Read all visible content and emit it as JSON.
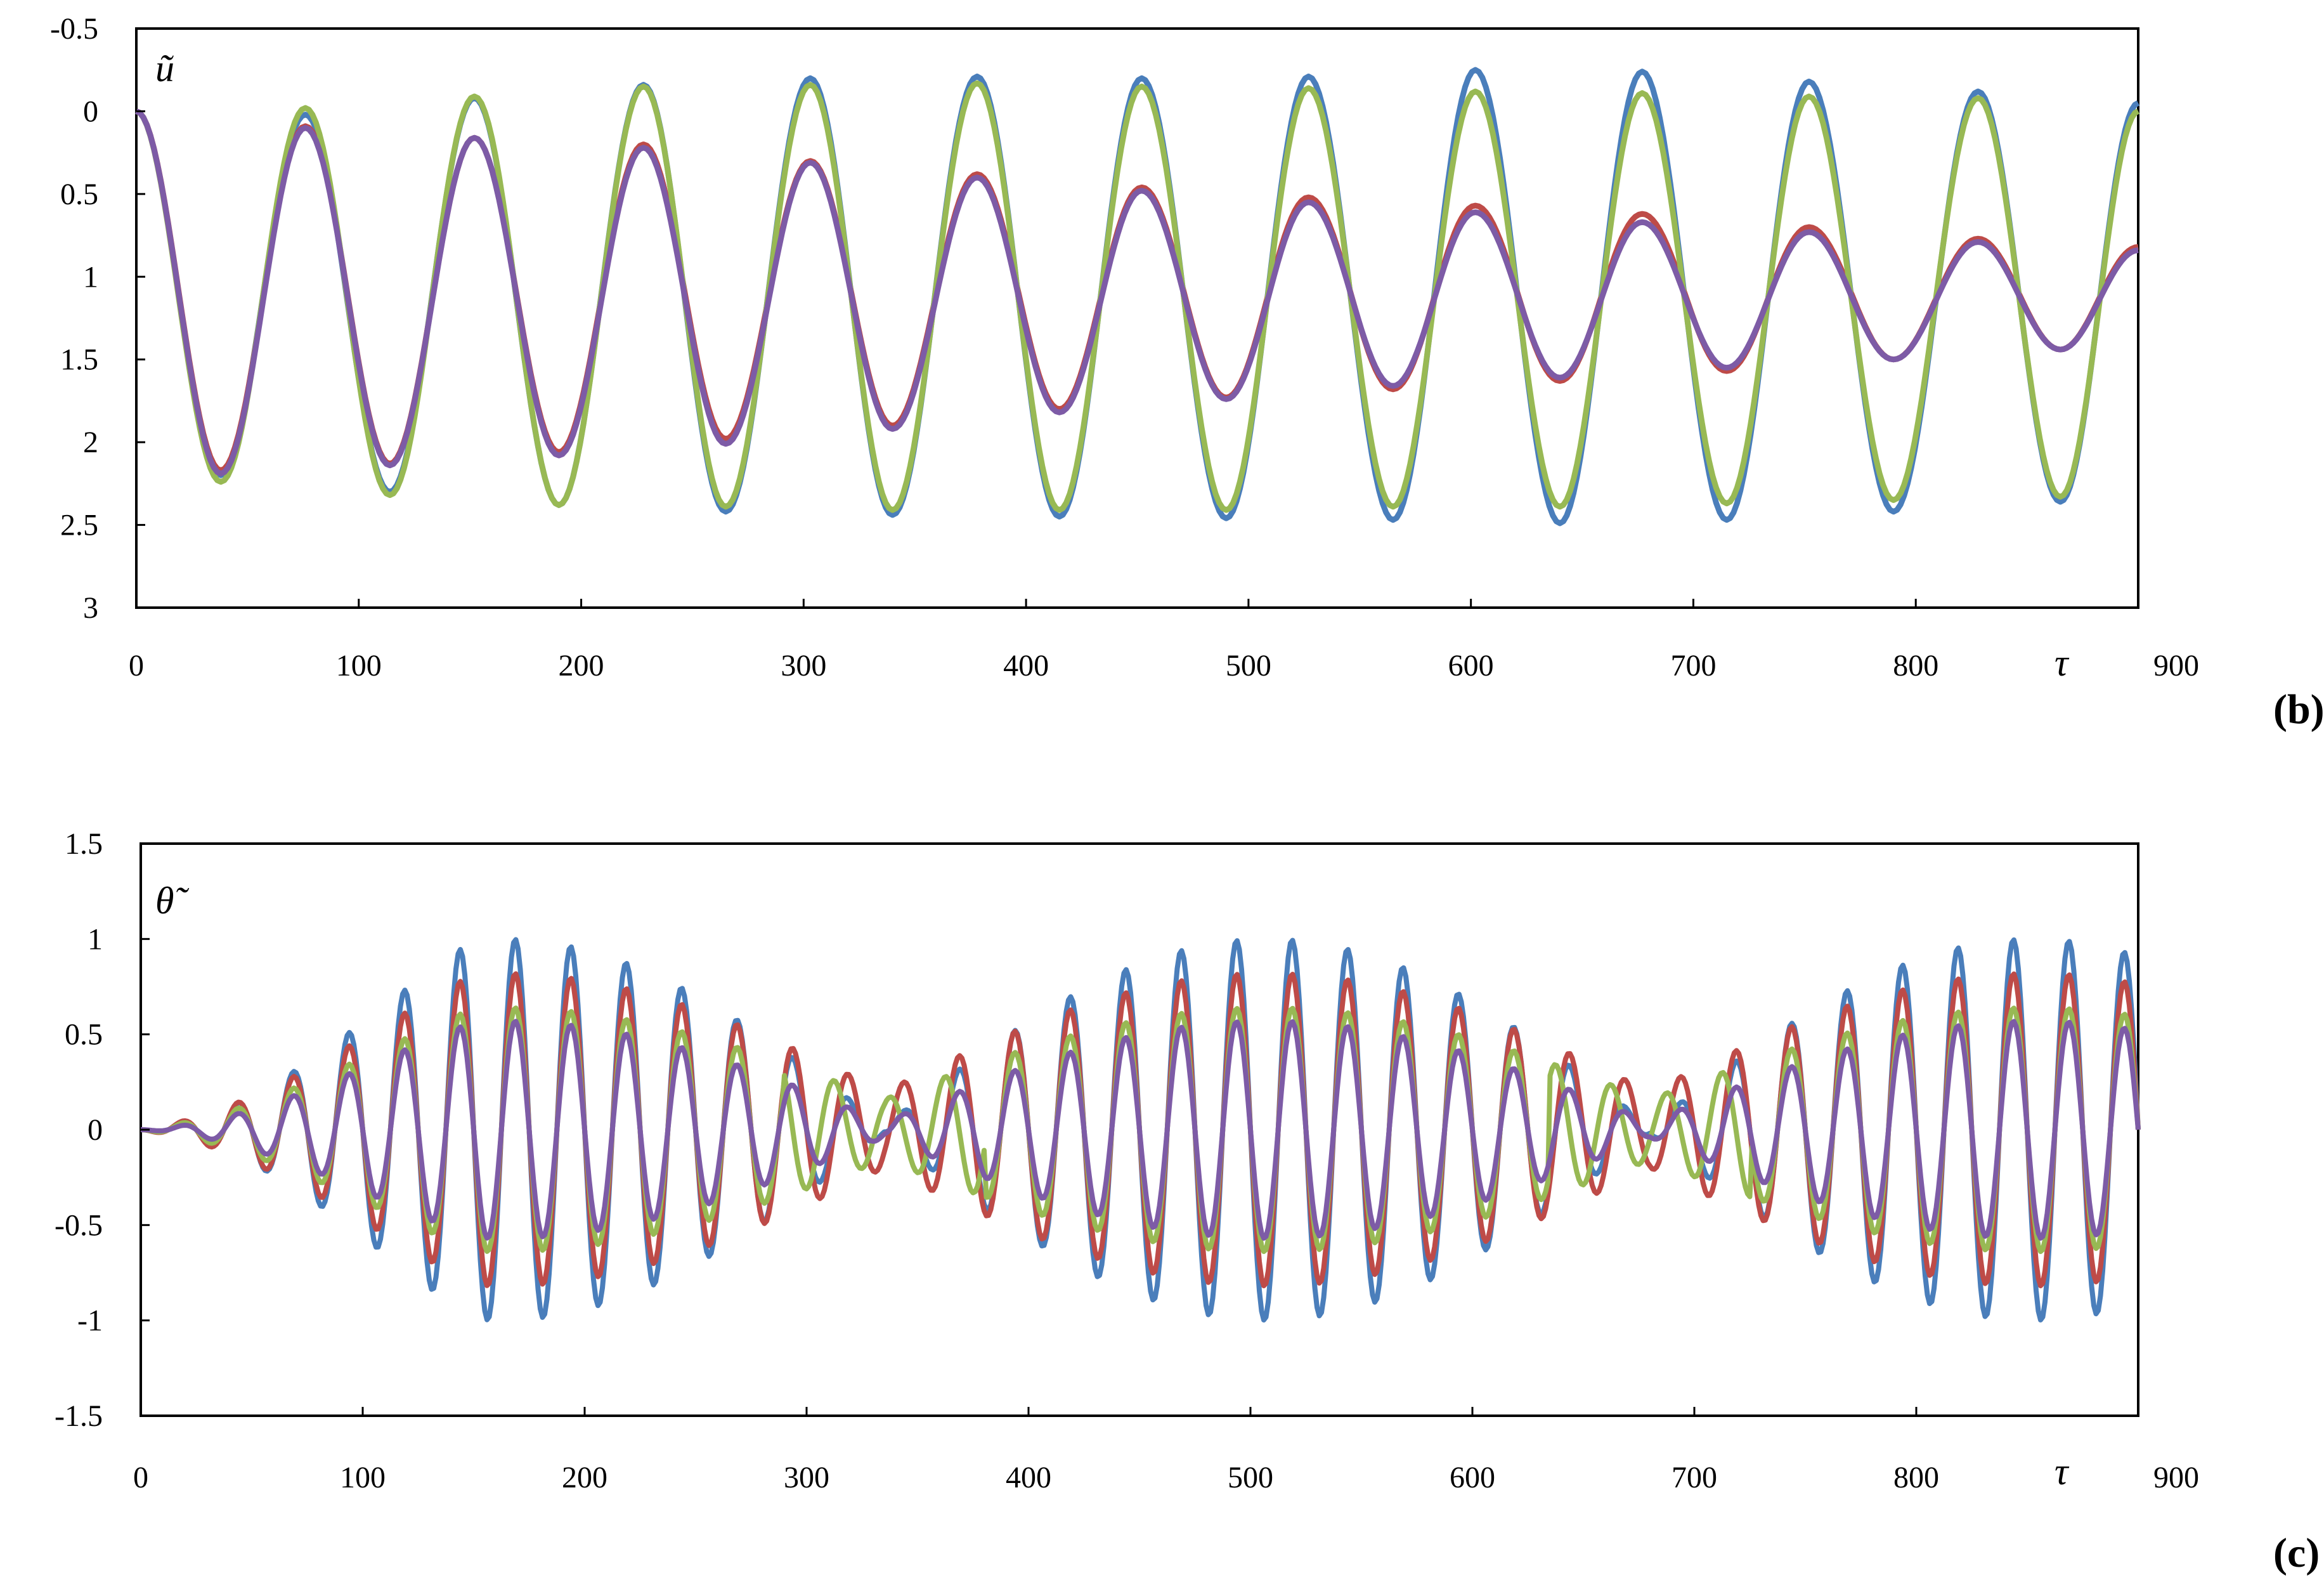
{
  "panels": [
    {
      "tag": "(b)",
      "var_label": "ũ",
      "x_label": "τ",
      "y_ticks": [
        "-0.5",
        "0",
        "0.5",
        "1",
        "1.5",
        "2",
        "2.5",
        "3"
      ],
      "x_ticks": [
        "0",
        "100",
        "200",
        "300",
        "400",
        "500",
        "600",
        "700",
        "800",
        "900"
      ]
    },
    {
      "tag": "(c)",
      "var_label": "θ̃",
      "x_label": "τ",
      "y_ticks": [
        "1.5",
        "1",
        "0.5",
        "0",
        "-0.5",
        "-1",
        "-1.5"
      ],
      "x_ticks": [
        "0",
        "100",
        "200",
        "300",
        "400",
        "500",
        "600",
        "700",
        "800",
        "900"
      ]
    }
  ],
  "chart_data": [
    {
      "type": "line",
      "title": "",
      "xlabel": "τ",
      "ylabel": "ũ",
      "xlim": [
        0,
        900
      ],
      "ylim": [
        -0.5,
        3
      ],
      "y_inverted": true,
      "grid": false,
      "legend": "none",
      "x": [
        0,
        38,
        76,
        114,
        152,
        190,
        228,
        265,
        303,
        340,
        378,
        415,
        452,
        490,
        527,
        565,
        602,
        640,
        677,
        715,
        752,
        790,
        828,
        865,
        900
      ],
      "series": [
        {
          "color": "#4a7ebb",
          "values": [
            0,
            2.2,
            0.02,
            2.3,
            -0.08,
            2.38,
            -0.16,
            2.42,
            -0.2,
            2.44,
            -0.21,
            2.45,
            -0.2,
            2.46,
            -0.21,
            2.47,
            -0.25,
            2.49,
            -0.24,
            2.47,
            -0.18,
            2.42,
            -0.12,
            2.36,
            -0.05
          ]
        },
        {
          "color": "#be4b48",
          "values": [
            0,
            2.17,
            0.09,
            2.13,
            0.16,
            2.06,
            0.2,
            1.98,
            0.3,
            1.9,
            0.38,
            1.8,
            0.46,
            1.73,
            0.52,
            1.68,
            0.57,
            1.63,
            0.62,
            1.57,
            0.7,
            1.5,
            0.77,
            1.44,
            0.82
          ]
        },
        {
          "color": "#98b954",
          "values": [
            0,
            2.24,
            -0.02,
            2.32,
            -0.09,
            2.38,
            -0.15,
            2.39,
            -0.16,
            2.41,
            -0.17,
            2.41,
            -0.15,
            2.41,
            -0.14,
            2.39,
            -0.12,
            2.39,
            -0.11,
            2.37,
            -0.09,
            2.35,
            -0.08,
            2.33,
            0.0
          ]
        },
        {
          "color": "#7d5ba6",
          "values": [
            0,
            2.19,
            0.1,
            2.14,
            0.16,
            2.08,
            0.22,
            2.01,
            0.31,
            1.92,
            0.4,
            1.82,
            0.48,
            1.74,
            0.55,
            1.66,
            0.61,
            1.61,
            0.67,
            1.55,
            0.73,
            1.5,
            0.79,
            1.44,
            0.84
          ]
        }
      ]
    },
    {
      "type": "line",
      "title": "",
      "xlabel": "τ",
      "ylabel": "θ̃",
      "xlim": [
        0,
        900
      ],
      "ylim": [
        -1.5,
        1.5
      ],
      "grid": false,
      "legend": "none",
      "period": 25,
      "beat_period": 345,
      "series": [
        {
          "color": "#4a7ebb",
          "peak_amplitude": 1.0,
          "floor_amplitude": 0.02
        },
        {
          "color": "#be4b48",
          "peak_amplitude": 0.82,
          "floor_amplitude": 0.2
        },
        {
          "color": "#98b954",
          "peak_amplitude": 0.64,
          "floor_amplitude": 0.16
        },
        {
          "color": "#7d5ba6",
          "peak_amplitude": 0.57,
          "floor_amplitude": 0.04
        }
      ]
    }
  ]
}
